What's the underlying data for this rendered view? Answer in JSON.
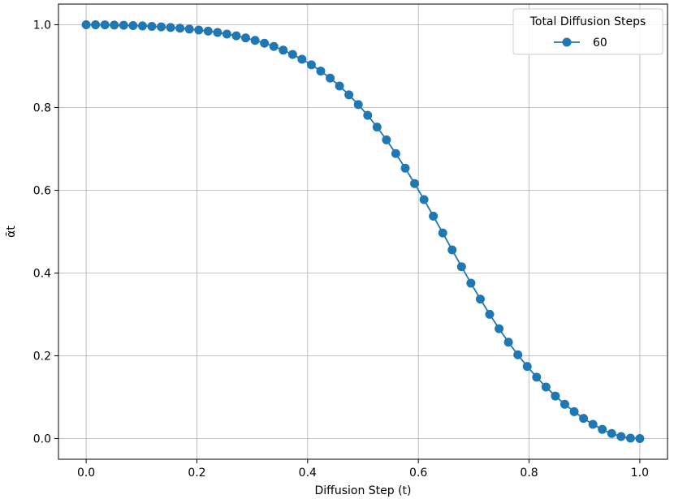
{
  "chart_data": {
    "type": "line",
    "title": "",
    "xlabel": "Diffusion Step (t)",
    "ylabel": "ᾱt",
    "xlim": [
      -0.05,
      1.05
    ],
    "ylim": [
      -0.05,
      1.05
    ],
    "xticks": [
      0.0,
      0.2,
      0.4,
      0.6,
      0.8,
      1.0
    ],
    "yticks": [
      0.0,
      0.2,
      0.4,
      0.6,
      0.8,
      1.0
    ],
    "xtick_labels": [
      "0.0",
      "0.2",
      "0.4",
      "0.6",
      "0.8",
      "1.0"
    ],
    "ytick_labels": [
      "0.0",
      "0.2",
      "0.4",
      "0.6",
      "0.8",
      "1.0"
    ],
    "grid": true,
    "legend": {
      "title": "Total Diffusion Steps",
      "placement": "top-right"
    },
    "series": [
      {
        "name": "60",
        "color": "#1f77b4",
        "marker": "circle",
        "x": [
          0.0,
          0.0169,
          0.0339,
          0.0508,
          0.0678,
          0.0847,
          0.1017,
          0.1186,
          0.1356,
          0.1525,
          0.1695,
          0.1864,
          0.2034,
          0.2203,
          0.2373,
          0.2542,
          0.2712,
          0.2881,
          0.3051,
          0.322,
          0.339,
          0.3559,
          0.3729,
          0.3898,
          0.4068,
          0.4237,
          0.4407,
          0.4576,
          0.4746,
          0.4915,
          0.5085,
          0.5254,
          0.5424,
          0.5593,
          0.5763,
          0.5932,
          0.6102,
          0.6271,
          0.6441,
          0.661,
          0.678,
          0.6949,
          0.7119,
          0.7288,
          0.7458,
          0.7627,
          0.7797,
          0.7966,
          0.8136,
          0.8305,
          0.8475,
          0.8644,
          0.8814,
          0.8983,
          0.9153,
          0.9322,
          0.9492,
          0.9661,
          0.9831,
          1.0
        ],
        "values": [
          1.0,
          0.9999,
          0.9997,
          0.9993,
          0.9988,
          0.998,
          0.9972,
          0.9961,
          0.9949,
          0.9934,
          0.9917,
          0.9896,
          0.9872,
          0.9845,
          0.9813,
          0.9775,
          0.9732,
          0.9681,
          0.9622,
          0.9554,
          0.9476,
          0.9386,
          0.9283,
          0.9166,
          0.9032,
          0.8881,
          0.8711,
          0.852,
          0.8307,
          0.8071,
          0.7811,
          0.7527,
          0.7219,
          0.6888,
          0.6535,
          0.6163,
          0.5775,
          0.5375,
          0.4968,
          0.4559,
          0.4153,
          0.3756,
          0.3371,
          0.3003,
          0.2655,
          0.2328,
          0.2024,
          0.1743,
          0.1484,
          0.1246,
          0.1028,
          0.0829,
          0.0649,
          0.0487,
          0.0344,
          0.0222,
          0.0122,
          0.0049,
          0.0009,
          0.0
        ]
      }
    ]
  }
}
